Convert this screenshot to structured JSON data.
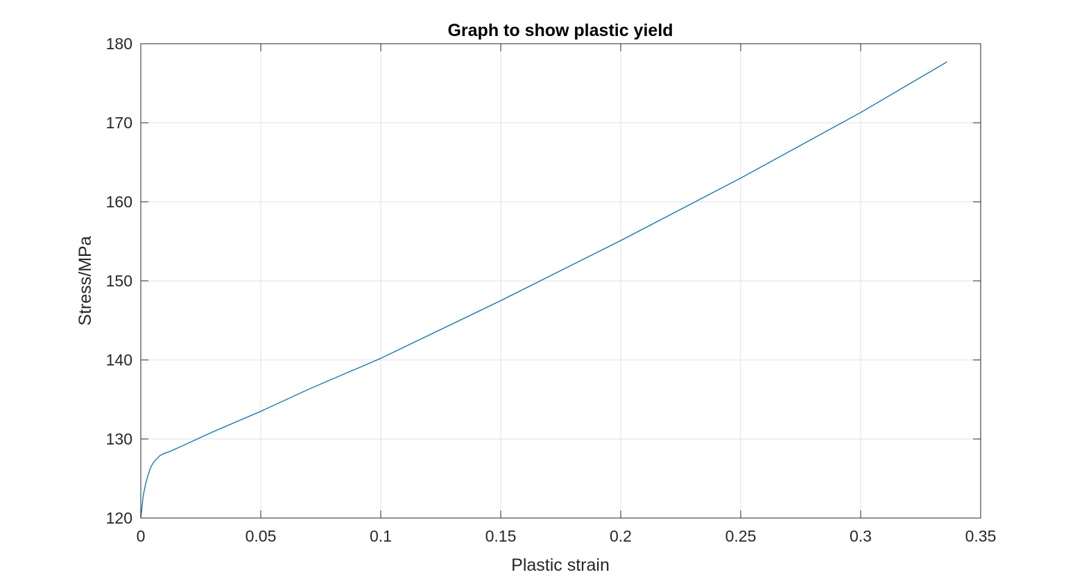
{
  "chart_data": {
    "type": "line",
    "title": "Graph to show plastic yield",
    "xlabel": "Plastic strain",
    "ylabel": "Stress/MPa",
    "xlim": [
      0,
      0.35
    ],
    "ylim": [
      120,
      180
    ],
    "xticks": [
      0,
      0.05,
      0.1,
      0.15,
      0.2,
      0.25,
      0.3,
      0.35
    ],
    "xtick_labels": [
      "0",
      "0.05",
      "0.1",
      "0.15",
      "0.2",
      "0.25",
      "0.3",
      "0.35"
    ],
    "yticks": [
      120,
      130,
      140,
      150,
      160,
      170,
      180
    ],
    "ytick_labels": [
      "120",
      "130",
      "140",
      "150",
      "160",
      "170",
      "180"
    ],
    "grid": true,
    "line_color": "#0072BD",
    "series": [
      {
        "x": [
          0,
          0.001,
          0.002,
          0.003,
          0.004,
          0.005,
          0.006,
          0.008,
          0.01,
          0.012,
          0.02,
          0.03,
          0.05,
          0.07,
          0.1,
          0.15,
          0.2,
          0.25,
          0.3,
          0.336
        ],
        "y": [
          120,
          122.8,
          124.3,
          125.4,
          126.3,
          126.9,
          127.3,
          127.9,
          128.2,
          128.4,
          129.5,
          130.9,
          133.5,
          136.3,
          140.2,
          147.5,
          155.1,
          163.0,
          171.3,
          177.7
        ]
      }
    ]
  }
}
